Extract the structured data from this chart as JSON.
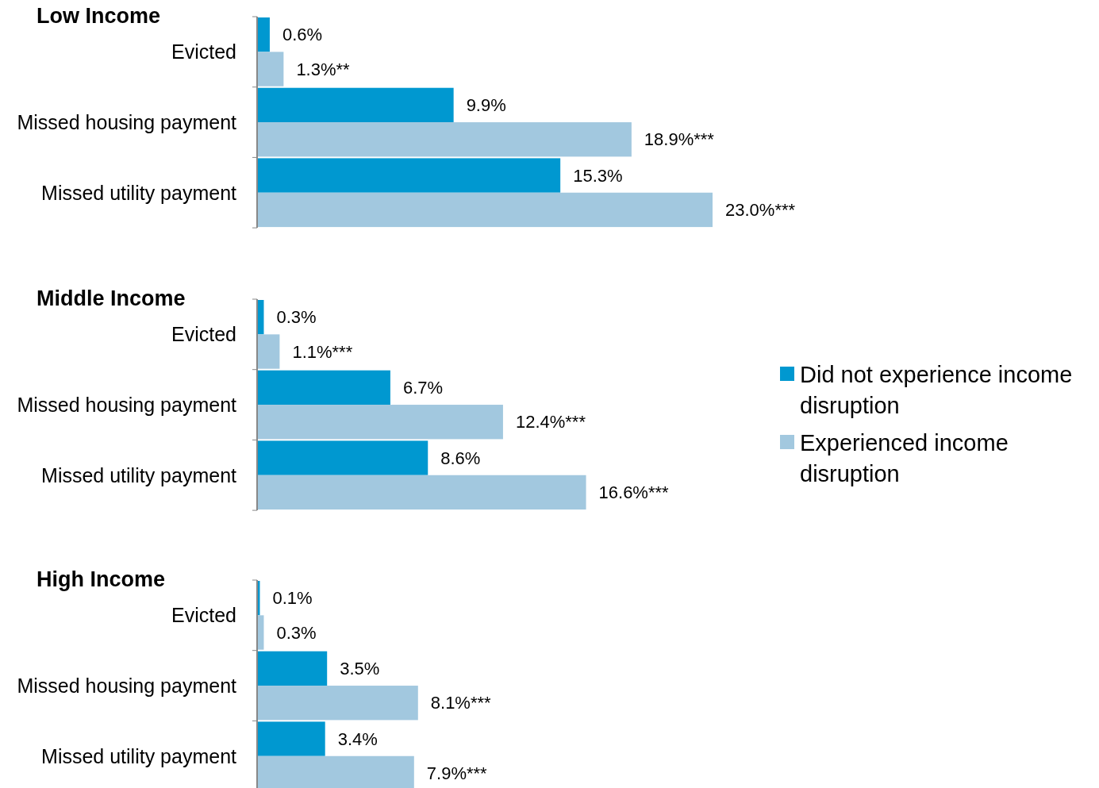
{
  "chart_data": [
    {
      "type": "bar",
      "orientation": "horizontal",
      "title": "Low Income",
      "categories": [
        "Evicted",
        "Missed housing payment",
        "Missed utility payment"
      ],
      "legend": false,
      "series": [
        {
          "color": "#0098d0",
          "values": [
            0.6,
            9.9,
            15.3
          ],
          "value_labels": [
            "0.6%",
            "9.9%",
            "15.3%"
          ]
        },
        {
          "color": "#a2c8df",
          "values": [
            1.3,
            18.9,
            23.0
          ],
          "value_labels": [
            "1.3%**",
            "18.9%***",
            "23.0%***"
          ]
        }
      ]
    },
    {
      "type": "bar",
      "orientation": "horizontal",
      "title": "Middle Income",
      "categories": [
        "Evicted",
        "Missed housing payment",
        "Missed utility payment"
      ],
      "legend": "right",
      "series": [
        {
          "name": "Did not experience income disruption",
          "color": "#0098d0",
          "values": [
            0.3,
            6.7,
            8.6
          ],
          "value_labels": [
            "0.3%",
            "6.7%",
            "8.6%"
          ]
        },
        {
          "name": "Experienced income disruption",
          "color": "#a2c8df",
          "values": [
            1.1,
            12.4,
            16.6
          ],
          "value_labels": [
            "1.1%***",
            "12.4%***",
            "16.6%***"
          ]
        }
      ]
    },
    {
      "type": "bar",
      "orientation": "horizontal",
      "title": "High Income",
      "categories": [
        "Evicted",
        "Missed housing payment",
        "Missed utility payment"
      ],
      "legend": false,
      "series": [
        {
          "color": "#0098d0",
          "values": [
            0.1,
            3.5,
            3.4
          ],
          "value_labels": [
            "0.1%",
            "3.5%",
            "3.4%"
          ]
        },
        {
          "color": "#a2c8df",
          "values": [
            0.3,
            8.1,
            7.9
          ],
          "value_labels": [
            "0.3%",
            "8.1%***",
            "7.9%***"
          ]
        }
      ]
    }
  ]
}
